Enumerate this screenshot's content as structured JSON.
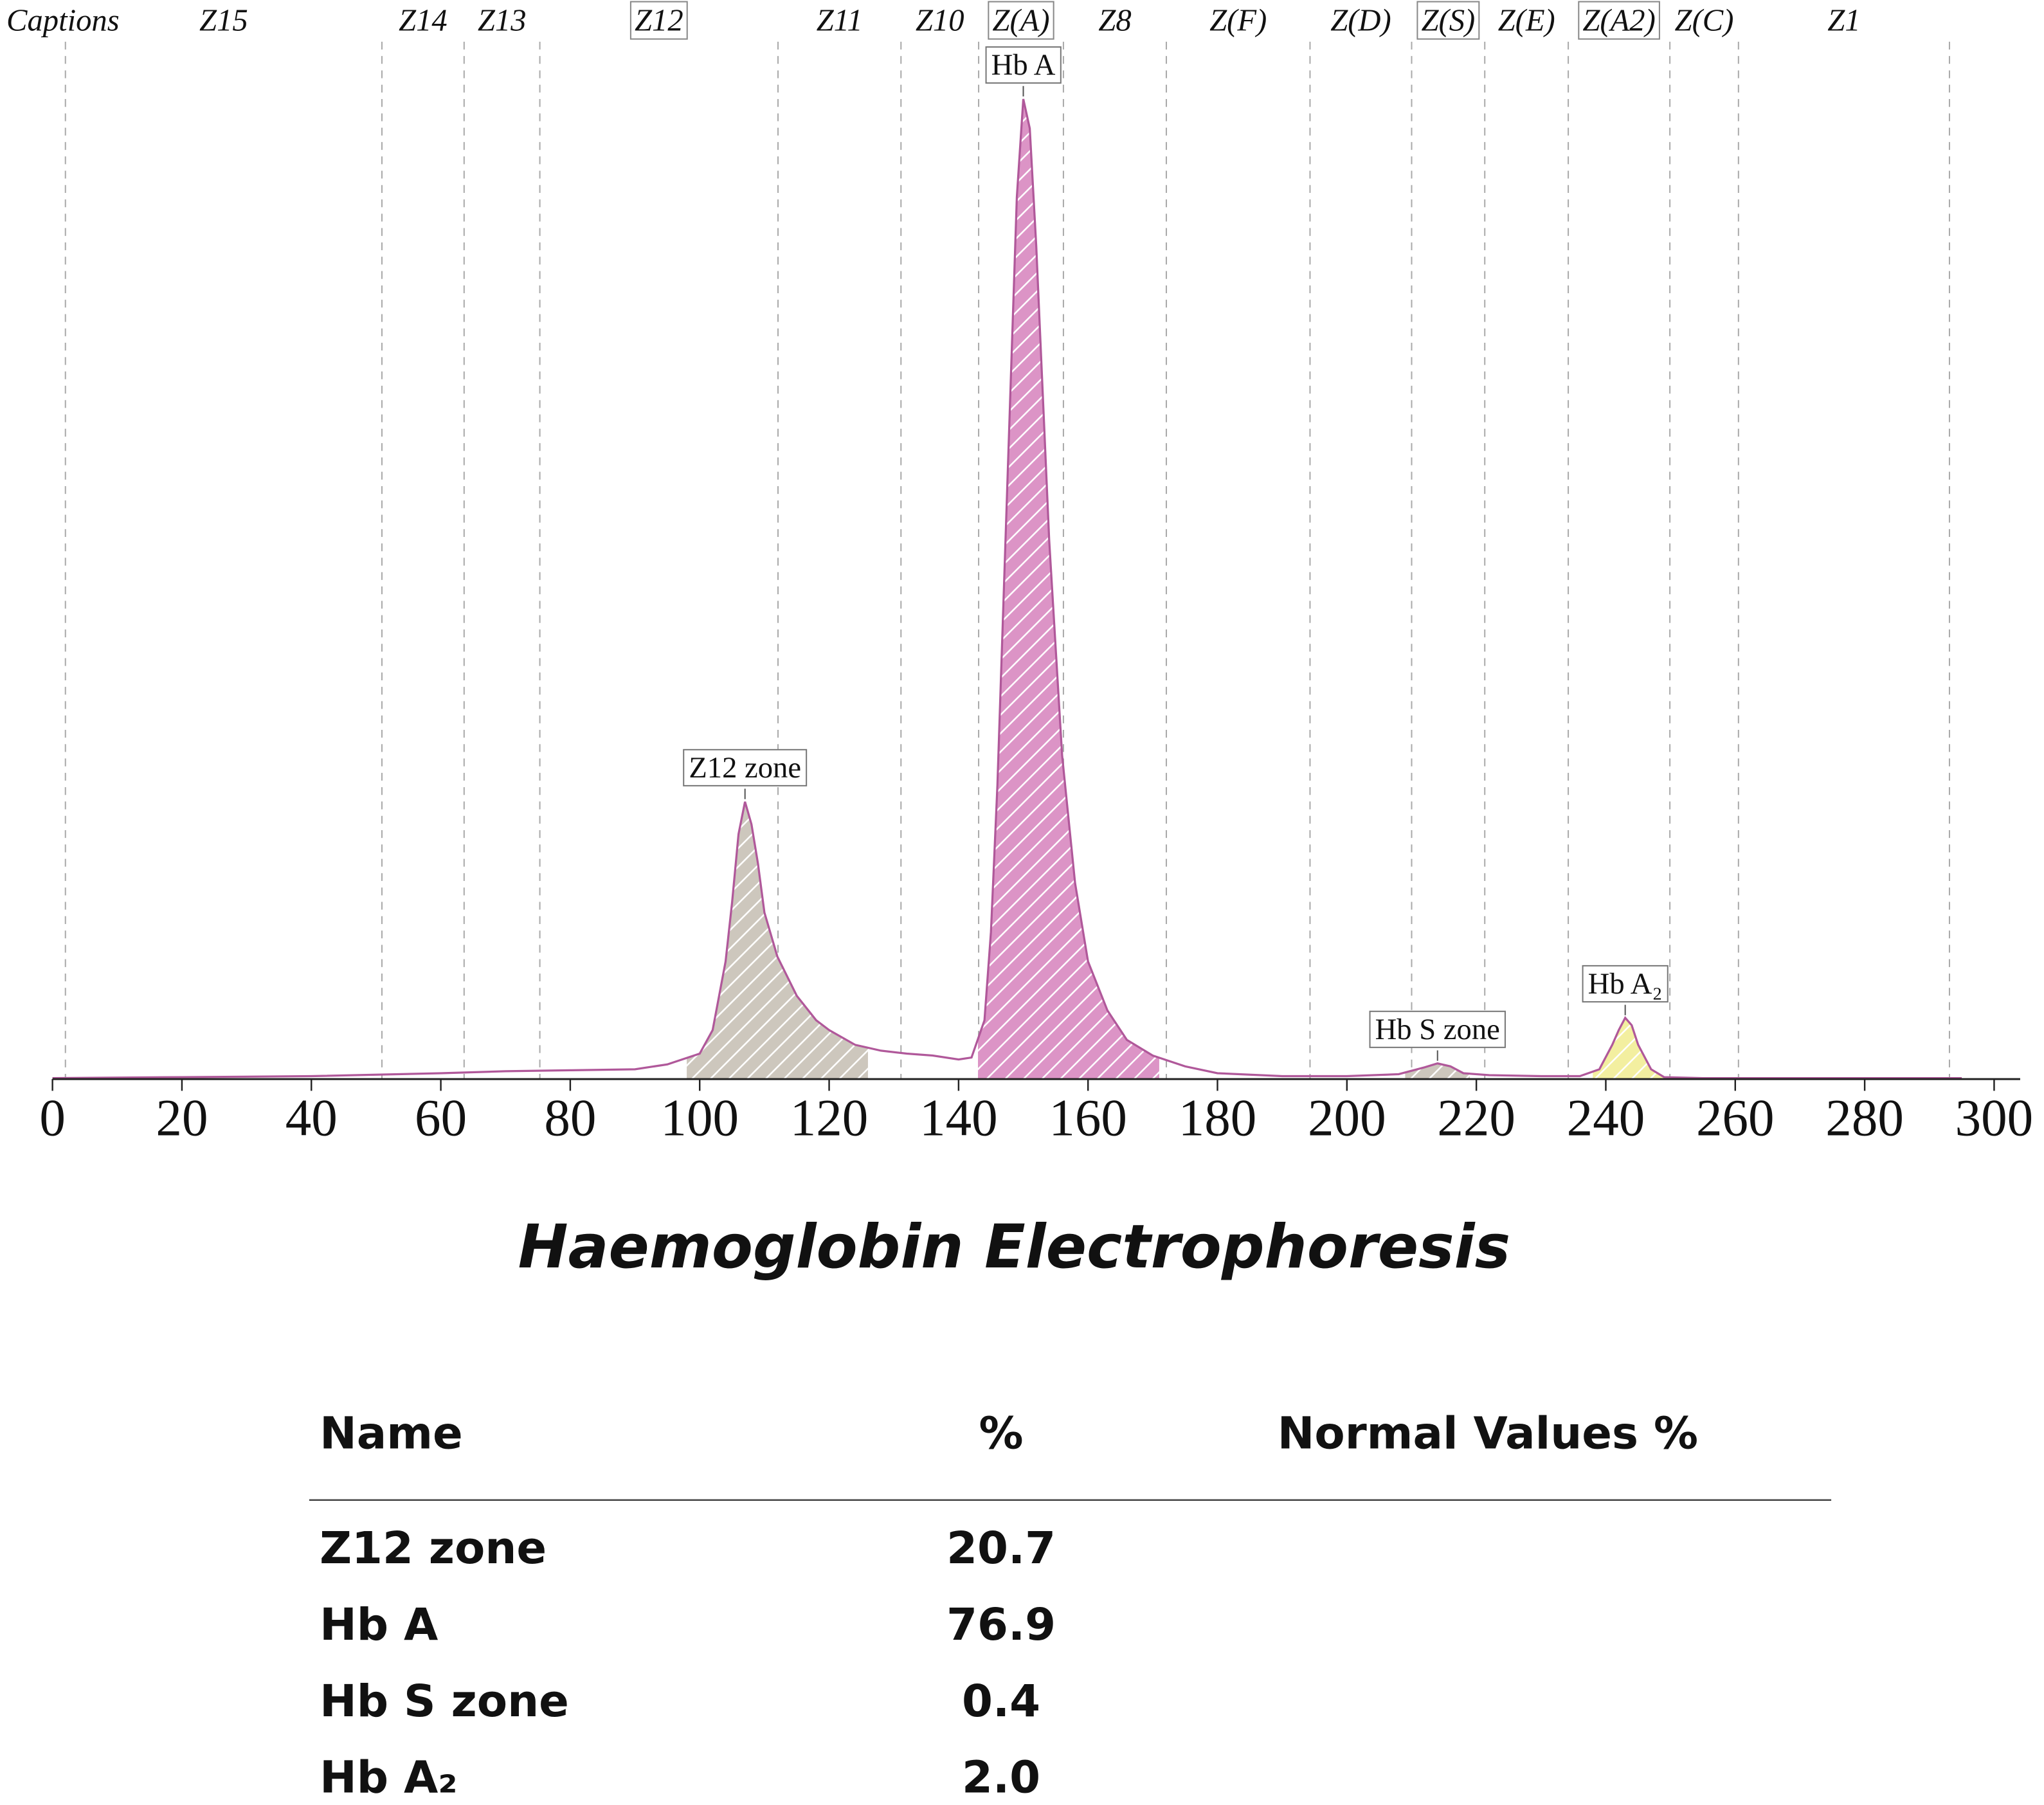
{
  "chart_data": {
    "type": "line",
    "title": "Haemoglobin Electrophoresis",
    "captions_label": "Captions",
    "xlim": [
      0,
      300
    ],
    "xticks": [
      0,
      20,
      40,
      60,
      80,
      100,
      120,
      140,
      160,
      180,
      200,
      220,
      240,
      260,
      280,
      300
    ],
    "ylim": [
      0,
      100
    ],
    "zone_bounds": [
      2,
      50.9,
      63.6,
      75.3,
      112.1,
      131.1,
      143.1,
      156.2,
      172.1,
      194.3,
      210,
      221.3,
      234.2,
      249.9,
      260.5,
      293.1
    ],
    "zones": [
      {
        "name": "Z15",
        "boxed": false
      },
      {
        "name": "Z14",
        "boxed": false
      },
      {
        "name": "Z13",
        "boxed": false
      },
      {
        "name": "Z12",
        "boxed": true
      },
      {
        "name": "Z11",
        "boxed": false
      },
      {
        "name": "Z10",
        "boxed": false
      },
      {
        "name": "Z(A)",
        "boxed": true
      },
      {
        "name": "Z8",
        "boxed": false
      },
      {
        "name": "Z(F)",
        "boxed": false
      },
      {
        "name": "Z(D)",
        "boxed": false
      },
      {
        "name": "Z(S)",
        "boxed": true
      },
      {
        "name": "Z(E)",
        "boxed": false
      },
      {
        "name": "Z(A2)",
        "boxed": true
      },
      {
        "name": "Z(C)",
        "boxed": false
      },
      {
        "name": "Z1",
        "boxed": false
      }
    ],
    "color": "#b0589a",
    "x": [
      0,
      20,
      40,
      60,
      70,
      80,
      90,
      95,
      100,
      102,
      104,
      105,
      106,
      107,
      108,
      109,
      110,
      112,
      115,
      118,
      120,
      124,
      128,
      132,
      136,
      140,
      142,
      144,
      145,
      146,
      147.5,
      149,
      150,
      151,
      152,
      154,
      156,
      158,
      160,
      163,
      166,
      170,
      175,
      180,
      190,
      200,
      208,
      212,
      214,
      216,
      218,
      222,
      230,
      236,
      239,
      241,
      242,
      243,
      244,
      245,
      247,
      249,
      255,
      280,
      295
    ],
    "values": [
      0.1,
      0.2,
      0.3,
      0.6,
      0.8,
      0.9,
      1.0,
      1.5,
      2.6,
      5,
      12,
      18,
      25,
      28.3,
      26,
      22,
      17,
      12.5,
      8.5,
      6,
      5,
      3.5,
      2.9,
      2.6,
      2.4,
      2,
      2.2,
      6,
      15,
      30,
      60,
      90,
      100,
      97,
      85,
      55,
      33,
      20,
      12,
      7,
      4,
      2.4,
      1.3,
      0.6,
      0.3,
      0.3,
      0.5,
      1.2,
      1.6,
      1.3,
      0.6,
      0.4,
      0.3,
      0.3,
      1,
      3.5,
      5,
      6.25,
      5.5,
      3.5,
      1,
      0.2,
      0.1,
      0.1,
      0.1
    ],
    "peaks": [
      {
        "name": "Z12 zone",
        "range": [
          98,
          126
        ],
        "color": "#cdc7bd"
      },
      {
        "name": "Hb A",
        "range": [
          143,
          171
        ],
        "color": "#dc94c6"
      },
      {
        "name": "Hb S zone",
        "range": [
          209,
          219
        ],
        "color": "#cdc7bd"
      },
      {
        "name": "Hb A₂",
        "range": [
          238,
          249
        ],
        "color": "#f3efa0"
      }
    ],
    "table": {
      "header": [
        "Name",
        "%",
        "Normal Values %"
      ],
      "rows": [
        [
          "Z12 zone",
          "20.7"
        ],
        [
          "Hb A",
          "76.9"
        ],
        [
          "Hb S zone",
          "0.4"
        ],
        [
          "Hb A₂",
          "2.0"
        ]
      ]
    }
  }
}
